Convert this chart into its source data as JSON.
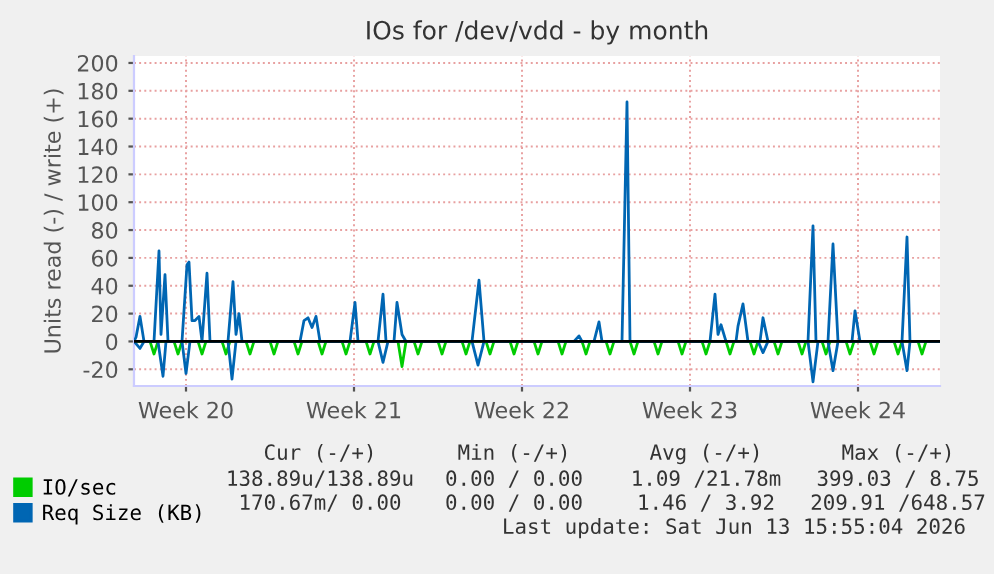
{
  "chart_data": {
    "type": "line",
    "title": "IOs for /dev/vdd - by month",
    "ylabel": "Units read (-) / write (+)",
    "xlim": [
      "2026-05-11T02:00",
      "2026-06-13T16:00"
    ],
    "xticks": [
      {
        "value": "2026-05-13T06:00",
        "label": "Week 20"
      },
      {
        "value": "2026-05-20T06:00",
        "label": "Week 21"
      },
      {
        "value": "2026-05-27T06:00",
        "label": "Week 22"
      },
      {
        "value": "2026-06-03T06:00",
        "label": "Week 23"
      },
      {
        "value": "2026-06-10T06:00",
        "label": "Week 24"
      }
    ],
    "ylim": [
      -32,
      205
    ],
    "yticks": [
      -20,
      0,
      20,
      40,
      60,
      80,
      100,
      120,
      140,
      160,
      180,
      200
    ],
    "grid": true,
    "legend": "bottom left",
    "ref_lines": [
      {
        "axis": "y",
        "value": 0,
        "color": "#000000"
      }
    ],
    "series": [
      {
        "name": "IO/sec",
        "color": "#00cc00",
        "x": [
          "2026-05-11T02:00",
          "2026-05-11T18:00",
          "2026-05-11T22:00",
          "2026-05-12T02:00",
          "2026-05-12T18:00",
          "2026-05-12T22:00",
          "2026-05-13T02:00",
          "2026-05-13T18:00",
          "2026-05-13T22:00",
          "2026-05-14T02:00",
          "2026-05-14T18:00",
          "2026-05-14T22:00",
          "2026-05-15T02:00",
          "2026-05-15T18:00",
          "2026-05-15T22:00",
          "2026-05-16T02:00",
          "2026-05-16T18:00",
          "2026-05-16T22:00",
          "2026-05-17T02:00",
          "2026-05-17T18:00",
          "2026-05-17T22:00",
          "2026-05-18T02:00",
          "2026-05-18T18:00",
          "2026-05-18T22:00",
          "2026-05-19T02:00",
          "2026-05-19T18:00",
          "2026-05-19T22:00",
          "2026-05-20T02:00",
          "2026-05-20T18:00",
          "2026-05-20T22:00",
          "2026-05-21T02:00",
          "2026-05-22T02:00",
          "2026-05-22T06:00",
          "2026-05-22T10:00",
          "2026-05-22T18:00",
          "2026-05-22T22:00",
          "2026-05-23T02:00",
          "2026-05-23T18:00",
          "2026-05-23T22:00",
          "2026-05-24T02:00",
          "2026-05-24T18:00",
          "2026-05-24T22:00",
          "2026-05-25T02:00",
          "2026-05-25T18:00",
          "2026-05-25T22:00",
          "2026-05-26T02:00",
          "2026-05-26T18:00",
          "2026-05-26T22:00",
          "2026-05-27T02:00",
          "2026-05-27T18:00",
          "2026-05-27T22:00",
          "2026-05-28T02:00",
          "2026-05-28T18:00",
          "2026-05-28T22:00",
          "2026-05-29T02:00",
          "2026-05-29T18:00",
          "2026-05-29T22:00",
          "2026-05-30T02:00",
          "2026-05-30T18:00",
          "2026-05-30T22:00",
          "2026-05-31T02:00",
          "2026-05-31T18:00",
          "2026-05-31T22:00",
          "2026-06-01T02:00",
          "2026-06-01T18:00",
          "2026-06-01T22:00",
          "2026-06-02T02:00",
          "2026-06-02T18:00",
          "2026-06-02T22:00",
          "2026-06-03T02:00",
          "2026-06-03T18:00",
          "2026-06-03T22:00",
          "2026-06-04T02:00",
          "2026-06-04T18:00",
          "2026-06-04T22:00",
          "2026-06-05T02:00",
          "2026-06-05T18:00",
          "2026-06-05T22:00",
          "2026-06-06T02:00",
          "2026-06-06T18:00",
          "2026-06-06T22:00",
          "2026-06-07T02:00",
          "2026-06-07T18:00",
          "2026-06-07T22:00",
          "2026-06-08T02:00",
          "2026-06-08T18:00",
          "2026-06-08T22:00",
          "2026-06-09T02:00",
          "2026-06-09T18:00",
          "2026-06-09T22:00",
          "2026-06-10T02:00",
          "2026-06-10T18:00",
          "2026-06-10T22:00",
          "2026-06-11T02:00",
          "2026-06-11T18:00",
          "2026-06-11T22:00",
          "2026-06-12T02:00",
          "2026-06-12T18:00",
          "2026-06-12T22:00",
          "2026-06-13T02:00",
          "2026-06-13T16:00"
        ],
        "values": [
          0,
          0,
          -9,
          0,
          0,
          -9,
          0,
          0,
          -9,
          0,
          0,
          -9,
          0,
          0,
          -9,
          0,
          0,
          -9,
          0,
          0,
          -9,
          0,
          0,
          -9,
          0,
          0,
          -9,
          0,
          0,
          -9,
          0,
          0,
          -18,
          0,
          0,
          -9,
          0,
          0,
          -9,
          0,
          0,
          -9,
          0,
          0,
          -9,
          0,
          0,
          -9,
          0,
          0,
          -9,
          0,
          0,
          -9,
          0,
          0,
          -9,
          0,
          0,
          -9,
          0,
          0,
          -9,
          0,
          0,
          -9,
          0,
          0,
          -9,
          0,
          0,
          -9,
          0,
          0,
          -9,
          0,
          0,
          -9,
          0,
          0,
          -9,
          0,
          0,
          -9,
          0,
          0,
          -9,
          0,
          0,
          -9,
          0,
          0,
          -9,
          0,
          0,
          -9,
          0,
          0,
          -9,
          0,
          0
        ]
      },
      {
        "name": "Req Size (KB)",
        "color": "#0066b3",
        "x": [
          "2026-05-11T02:00",
          "2026-05-11T04:00",
          "2026-05-11T08:00",
          "2026-05-11T12:00",
          "2026-05-11T22:00",
          "2026-05-12T03:00",
          "2026-05-12T05:00",
          "2026-05-12T09:00",
          "2026-05-12T12:00",
          "2026-05-13T02:00",
          "2026-05-13T07:00",
          "2026-05-13T09:00",
          "2026-05-13T12:00",
          "2026-05-13T15:00",
          "2026-05-13T19:00",
          "2026-05-13T22:00",
          "2026-05-14T03:00",
          "2026-05-14T06:00",
          "2026-05-15T00:00",
          "2026-05-15T05:00",
          "2026-05-15T08:00",
          "2026-05-15T11:00",
          "2026-05-15T14:00",
          "2026-05-18T00:00",
          "2026-05-18T04:00",
          "2026-05-18T08:00",
          "2026-05-18T12:00",
          "2026-05-18T16:00",
          "2026-05-18T20:00",
          "2026-05-20T02:00",
          "2026-05-20T07:00",
          "2026-05-20T10:00",
          "2026-05-21T06:00",
          "2026-05-21T11:00",
          "2026-05-21T14:00",
          "2026-05-21T22:00",
          "2026-05-22T01:00",
          "2026-05-22T06:00",
          "2026-05-22T10:00",
          "2026-05-25T04:00",
          "2026-05-25T11:00",
          "2026-05-25T16:00",
          "2026-05-29T10:00",
          "2026-05-29T15:00",
          "2026-05-29T18:00",
          "2026-05-30T06:00",
          "2026-05-30T11:00",
          "2026-05-30T14:00",
          "2026-05-31T10:00",
          "2026-05-31T15:00",
          "2026-05-31T18:00",
          "2026-06-04T02:00",
          "2026-06-04T07:00",
          "2026-06-04T10:00",
          "2026-06-04T13:00",
          "2026-06-04T18:00",
          "2026-06-05T04:00",
          "2026-06-05T06:00",
          "2026-06-05T11:00",
          "2026-06-05T16:00",
          "2026-06-06T04:00",
          "2026-06-06T07:00",
          "2026-06-06T12:00",
          "2026-06-08T04:00",
          "2026-06-08T09:00",
          "2026-06-08T12:00",
          "2026-06-09T00:00",
          "2026-06-09T05:00",
          "2026-06-09T10:00",
          "2026-06-10T00:00",
          "2026-06-10T03:00",
          "2026-06-10T08:00",
          "2026-06-12T02:00",
          "2026-06-12T07:00",
          "2026-06-12T10:00",
          "2026-06-13T16:00"
        ],
        "values": [
          0,
          3,
          18,
          0,
          0,
          65,
          5,
          48,
          0,
          0,
          55,
          57,
          15,
          15,
          18,
          0,
          49,
          0,
          0,
          43,
          5,
          20,
          0,
          0,
          15,
          17,
          10,
          18,
          0,
          0,
          28,
          0,
          0,
          34,
          0,
          0,
          28,
          5,
          0,
          0,
          44,
          0,
          0,
          4,
          0,
          0,
          14,
          0,
          0,
          172,
          0,
          0,
          34,
          5,
          12,
          0,
          0,
          11,
          27,
          0,
          0,
          17,
          0,
          0,
          83,
          0,
          0,
          70,
          0,
          0,
          22,
          0,
          0,
          75,
          0,
          0
        ]
      },
      {
        "color": "#0066b3",
        "x": [
          "2026-05-11T02:00",
          "2026-05-11T08:00",
          "2026-05-11T12:00",
          "2026-05-12T02:00",
          "2026-05-12T07:00",
          "2026-05-12T10:00",
          "2026-05-13T02:00",
          "2026-05-13T06:00",
          "2026-05-13T10:00",
          "2026-05-15T00:00",
          "2026-05-15T04:00",
          "2026-05-15T08:00",
          "2026-05-21T06:00",
          "2026-05-21T11:00",
          "2026-05-21T16:00",
          "2026-05-25T04:00",
          "2026-05-25T10:00",
          "2026-05-25T16:00",
          "2026-06-06T02:00",
          "2026-06-06T07:00",
          "2026-06-06T12:00",
          "2026-06-08T04:00",
          "2026-06-08T09:00",
          "2026-06-08T14:00",
          "2026-06-09T00:00",
          "2026-06-09T05:00",
          "2026-06-09T10:00",
          "2026-06-12T02:00",
          "2026-06-12T07:00",
          "2026-06-12T10:00",
          "2026-06-13T16:00"
        ],
        "values": [
          0,
          -5,
          0,
          0,
          -25,
          0,
          0,
          -23,
          0,
          0,
          -27,
          0,
          0,
          -15,
          0,
          0,
          -17,
          0,
          0,
          -8,
          0,
          0,
          -29,
          0,
          0,
          -21,
          0,
          0,
          -21,
          0,
          0
        ]
      }
    ],
    "annotations": [
      "Cur (-/+)",
      "Min (-/+)",
      "Avg (-/+)",
      "Max (-/+)",
      "138.89u/138.89u",
      "0.00 / 0.00",
      "1.09 /21.78m",
      "399.03 / 8.75",
      "170.67m/ 0.00",
      "0.00 / 0.00",
      "1.46 / 3.92",
      "209.91 /648.57",
      "Last update: Sat Jun 13 15:55:04 2026"
    ]
  }
}
